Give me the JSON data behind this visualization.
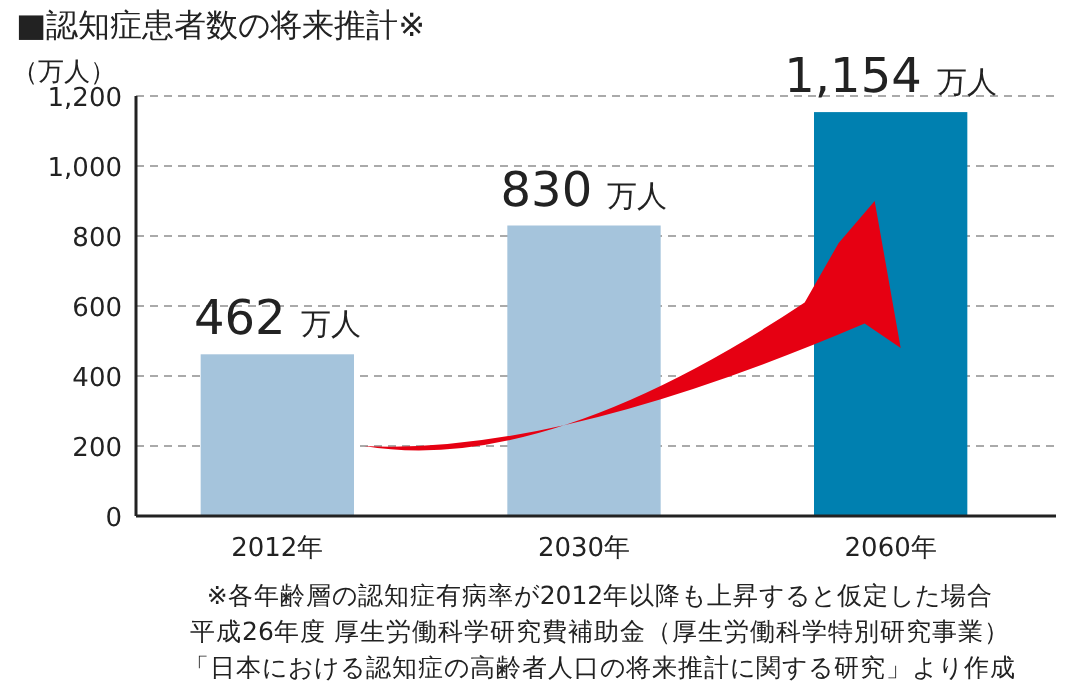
{
  "chart_data": {
    "type": "bar",
    "title": "■認知症患者数の将来推計※",
    "ylabel": "（万人）",
    "categories": [
      "2012年",
      "2030年",
      "2060年"
    ],
    "values": [
      462,
      830,
      1154
    ],
    "colors": [
      "#a5c4dc",
      "#a5c4dc",
      "#0080b0"
    ],
    "value_labels": [
      "462 万人",
      "830 万人",
      "1,154 万人"
    ],
    "ylim": [
      0,
      1200
    ],
    "yticks": [
      0,
      200,
      400,
      600,
      800,
      {
        "value": 1000,
        "label": "1,000"
      },
      {
        "value": 1200,
        "label": "1,200"
      }
    ],
    "grid": "y",
    "annotations": [
      "※各年齢層の認知症有病率が2012年以降も上昇すると仮定した場合",
      "平成26年度 厚生労働科学研究費補助金（厚生労働科学特別研究事業）",
      "「日本における認知症の高齢者人口の将来推計に関する研究」より作成"
    ]
  }
}
